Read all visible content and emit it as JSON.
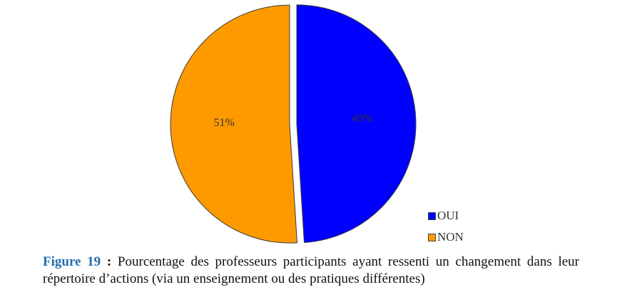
{
  "chart_data": {
    "type": "pie",
    "slices": [
      {
        "name": "OUI",
        "value": 49,
        "label": "49%",
        "color": "#0000ff"
      },
      {
        "name": "NON",
        "value": 51,
        "label": "51%",
        "color": "#ff9900"
      }
    ],
    "legend_placement": "bottom-right",
    "start": "top, clockwise",
    "exploded": true
  },
  "caption": {
    "figure_label": "Figure 19",
    "separator": " : ",
    "text": "Pourcentage des professeurs participants ayant ressenti un changement dans leur répertoire d’actions (via un enseignement ou des pratiques différentes)"
  }
}
